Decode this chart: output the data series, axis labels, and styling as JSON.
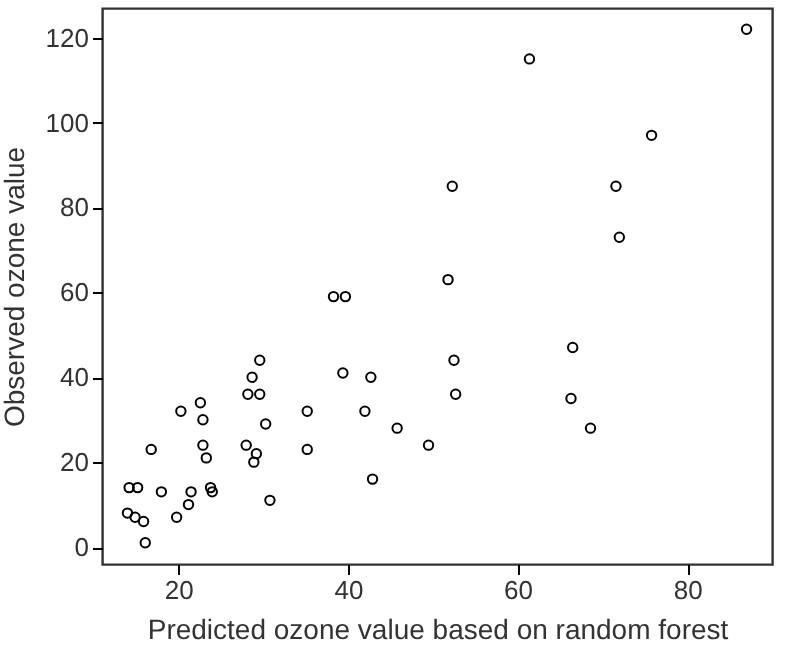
{
  "chart_data": {
    "type": "scatter",
    "xlabel": "Predicted ozone value based on random forest",
    "ylabel": "Observed ozone value",
    "x": [
      87,
      61.4,
      75.8,
      71.6,
      52.3,
      72,
      51.8,
      52.5,
      52.7,
      66.5,
      66.3,
      68.6,
      49.5,
      45.8,
      38.3,
      39.7,
      39.4,
      42.7,
      29.6,
      28.7,
      28.2,
      29.6,
      35.2,
      42,
      20.3,
      22.6,
      22.9,
      30.3,
      28,
      29.2,
      28.9,
      35.2,
      22.9,
      23.3,
      42.9,
      16.8,
      14.2,
      15.2,
      18,
      21.5,
      23.8,
      24,
      21.2,
      19.8,
      30.8,
      14,
      14.9,
      15.9,
      16.1
    ],
    "values": [
      122,
      115,
      97,
      85,
      85,
      73,
      63,
      44,
      36,
      47,
      35,
      28,
      24,
      28,
      59,
      59,
      41,
      40,
      44,
      40,
      36,
      36,
      32,
      32,
      32,
      34,
      30,
      29,
      24,
      22,
      20,
      23,
      24,
      21,
      16,
      23,
      14,
      14,
      13,
      13,
      14,
      13,
      10,
      7,
      11,
      8,
      7,
      6,
      1
    ],
    "color": "#000000",
    "marker": "circle",
    "grid": false,
    "xlim": [
      11,
      90
    ],
    "ylim": [
      -4,
      127
    ],
    "xticks": [
      20,
      40,
      60,
      80
    ],
    "yticks": [
      0,
      20,
      40,
      60,
      80,
      100,
      120
    ]
  }
}
